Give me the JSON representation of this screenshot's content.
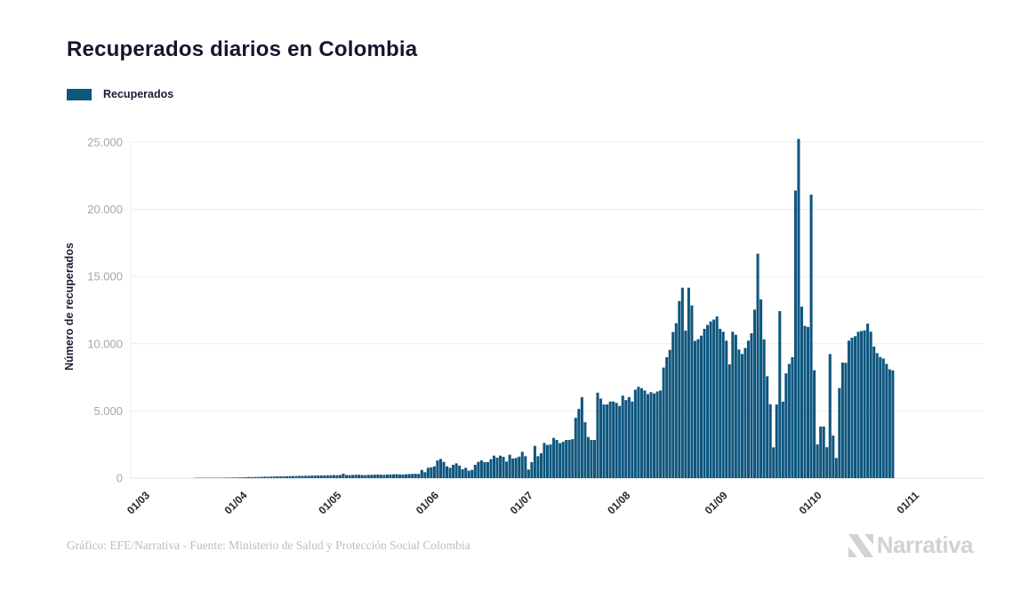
{
  "title": "Recuperados diarios en Colombia",
  "legend": {
    "label": "Recuperados",
    "swatch_color": "#0e567e"
  },
  "footer": {
    "credit": "Gráfico: EFE/Narrativa - Fuente: Ministerio de Salud y Protección Social Colombia",
    "brand": "Narrativa"
  },
  "colors": {
    "bar": "#0e567e",
    "grid": "#ebebeb",
    "axis_line": "#dcdcdc",
    "y_tick_text": "#a6a6a6",
    "x_tick_text": "#262626",
    "axis_title_text": "#1b1b33"
  },
  "chart_data": {
    "type": "bar",
    "title": "Recuperados diarios en Colombia",
    "series_name": "Recuperados",
    "xlabel": "",
    "ylabel": "Número de recuperados",
    "ylim": [
      0,
      25000
    ],
    "yticks": [
      0,
      5000,
      10000,
      15000,
      20000,
      25000
    ],
    "ytick_labels": [
      "0",
      "5.000",
      "10.000",
      "15.000",
      "20.000",
      "25.000"
    ],
    "grid": true,
    "legend_position": "top-left",
    "x_unit": "day",
    "x_start_label": "01/03",
    "x_total_days": 246,
    "xtick_labels": [
      "01/03",
      "01/04",
      "01/05",
      "01/06",
      "01/07",
      "01/08",
      "01/09",
      "01/10",
      "01/11"
    ],
    "xtick_day_offsets": [
      0,
      31,
      61,
      92,
      122,
      153,
      184,
      214,
      245
    ],
    "values_span": "daily from 01/03 to 27/10",
    "values": [
      0,
      0,
      0,
      0,
      0,
      0,
      0,
      0,
      0,
      0,
      0,
      0,
      0,
      0,
      0,
      0,
      0,
      0,
      5,
      8,
      6,
      10,
      12,
      15,
      18,
      22,
      25,
      30,
      35,
      40,
      45,
      50,
      55,
      60,
      70,
      80,
      75,
      85,
      90,
      100,
      110,
      105,
      115,
      120,
      130,
      125,
      135,
      140,
      150,
      155,
      160,
      170,
      165,
      175,
      180,
      185,
      190,
      200,
      195,
      205,
      210,
      215,
      225,
      220,
      230,
      330,
      235,
      225,
      240,
      250,
      255,
      230,
      220,
      240,
      250,
      255,
      265,
      255,
      245,
      265,
      275,
      285,
      295,
      275,
      265,
      285,
      305,
      315,
      325,
      310,
      615,
      440,
      770,
      800,
      880,
      1320,
      1430,
      1210,
      880,
      770,
      990,
      1100,
      925,
      660,
      770,
      550,
      615,
      990,
      1210,
      1320,
      1190,
      1190,
      1410,
      1675,
      1520,
      1675,
      1585,
      1230,
      1740,
      1455,
      1500,
      1600,
      1960,
      1630,
      640,
      1190,
      2400,
      1630,
      1850,
      2620,
      2465,
      2510,
      2990,
      2840,
      2600,
      2700,
      2840,
      2840,
      2900,
      4490,
      5150,
      6030,
      4160,
      3060,
      2840,
      2840,
      6360,
      5920,
      5480,
      5480,
      5700,
      5700,
      5600,
      5370,
      6140,
      5810,
      6030,
      5700,
      6580,
      6800,
      6690,
      6520,
      6250,
      6400,
      6300,
      6450,
      6520,
      8230,
      9000,
      9550,
      10870,
      11530,
      13180,
      14170,
      10980,
      14170,
      12850,
      10210,
      10340,
      10600,
      11110,
      11400,
      11660,
      11800,
      12030,
      11110,
      10890,
      10230,
      8470,
      10890,
      10670,
      9570,
      9240,
      9680,
      10230,
      10780,
      12540,
      16700,
      13300,
      10330,
      7580,
      5500,
      2290,
      5480,
      12430,
      5700,
      7800,
      8500,
      9000,
      21400,
      25243,
      12760,
      11330,
      11250,
      21100,
      8030,
      2510,
      3840,
      3840,
      2300,
      9230,
      3170,
      1500,
      6700,
      8600,
      8580,
      10230,
      10450,
      10560,
      10890,
      10950,
      11000,
      11500,
      10900,
      9790,
      9300,
      9010,
      8900,
      8500,
      8100,
      8020
    ]
  }
}
